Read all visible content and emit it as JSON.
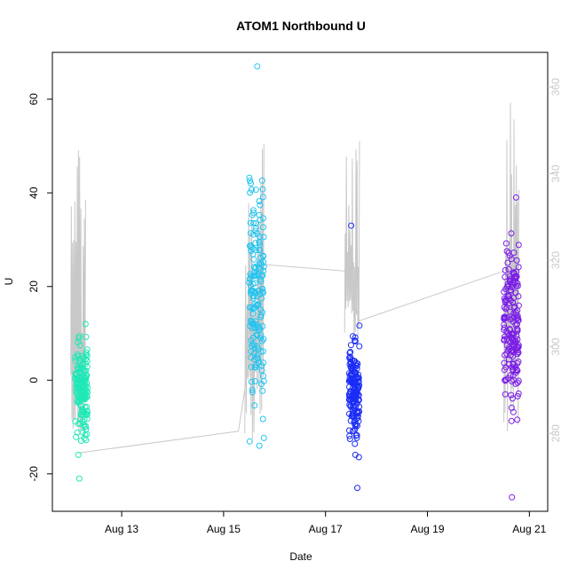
{
  "chart_data": {
    "type": "scatter",
    "title": "ATOM1 Northbound U",
    "xlabel": "Date",
    "ylabel": "U",
    "y2label": "",
    "x_domain": [
      "2016-08-12",
      "2016-08-21"
    ],
    "x_ticks": [
      {
        "date": "2016-08-13",
        "label": "Aug 13"
      },
      {
        "date": "2016-08-15",
        "label": "Aug 15"
      },
      {
        "date": "2016-08-17",
        "label": "Aug 17"
      },
      {
        "date": "2016-08-19",
        "label": "Aug 19"
      },
      {
        "date": "2016-08-21",
        "label": "Aug 21"
      }
    ],
    "ylim": [
      -28,
      70
    ],
    "y_ticks": [
      -20,
      0,
      20,
      40,
      60
    ],
    "y2lim": [
      262,
      368
    ],
    "y2_ticks": [
      280,
      300,
      320,
      340,
      360
    ],
    "grid": false,
    "legend": "none",
    "marker": "open-circle",
    "series": [
      {
        "color": "#1de9b6",
        "t_start": "2016-08-12 02:00",
        "t_end": "2016-08-12 08:00",
        "u_center": -2,
        "u_spread": 7,
        "u_min": -21,
        "u_max": 12,
        "n": 160
      },
      {
        "color": "#22c4f0",
        "t_start": "2016-08-15 12:00",
        "t_end": "2016-08-15 19:00",
        "u_center": 18,
        "u_spread": 17,
        "u_min": -14,
        "u_max": 67,
        "n": 170
      },
      {
        "color": "#1a2cf5",
        "t_start": "2016-08-17 11:00",
        "t_end": "2016-08-17 16:00",
        "u_center": -2,
        "u_spread": 7,
        "u_min": -23,
        "u_max": 33,
        "n": 170
      },
      {
        "color": "#7a1ce8",
        "t_start": "2016-08-20 12:00",
        "t_end": "2016-08-20 19:00",
        "u_center": 11,
        "u_spread": 12,
        "u_min": -25,
        "u_max": 39,
        "n": 180
      }
    ],
    "secondary_line": {
      "color": "#c8c8c8",
      "points": [
        {
          "t": "2016-08-12 04:00",
          "v": 275.5
        },
        {
          "t": "2016-08-15 07:00",
          "v": 280.5
        },
        {
          "t": "2016-08-15 19:00",
          "v": 319
        },
        {
          "t": "2016-08-17 09:00",
          "v": 317.5
        },
        {
          "t": "2016-08-17 16:00",
          "v": 306
        },
        {
          "t": "2016-08-20 12:00",
          "v": 317.5
        }
      ],
      "bursts": [
        {
          "t_start": "2016-08-12 00:00",
          "t_end": "2016-08-12 07:00",
          "v_min": 278,
          "v_max": 346
        },
        {
          "t_start": "2016-08-15 10:00",
          "t_end": "2016-08-15 19:00",
          "v_min": 277,
          "v_max": 347
        },
        {
          "t_start": "2016-08-17 09:00",
          "t_end": "2016-08-17 16:00",
          "v_min": 300,
          "v_max": 349
        },
        {
          "t_start": "2016-08-20 12:00",
          "t_end": "2016-08-20 19:00",
          "v_min": 279,
          "v_max": 362
        }
      ]
    }
  }
}
